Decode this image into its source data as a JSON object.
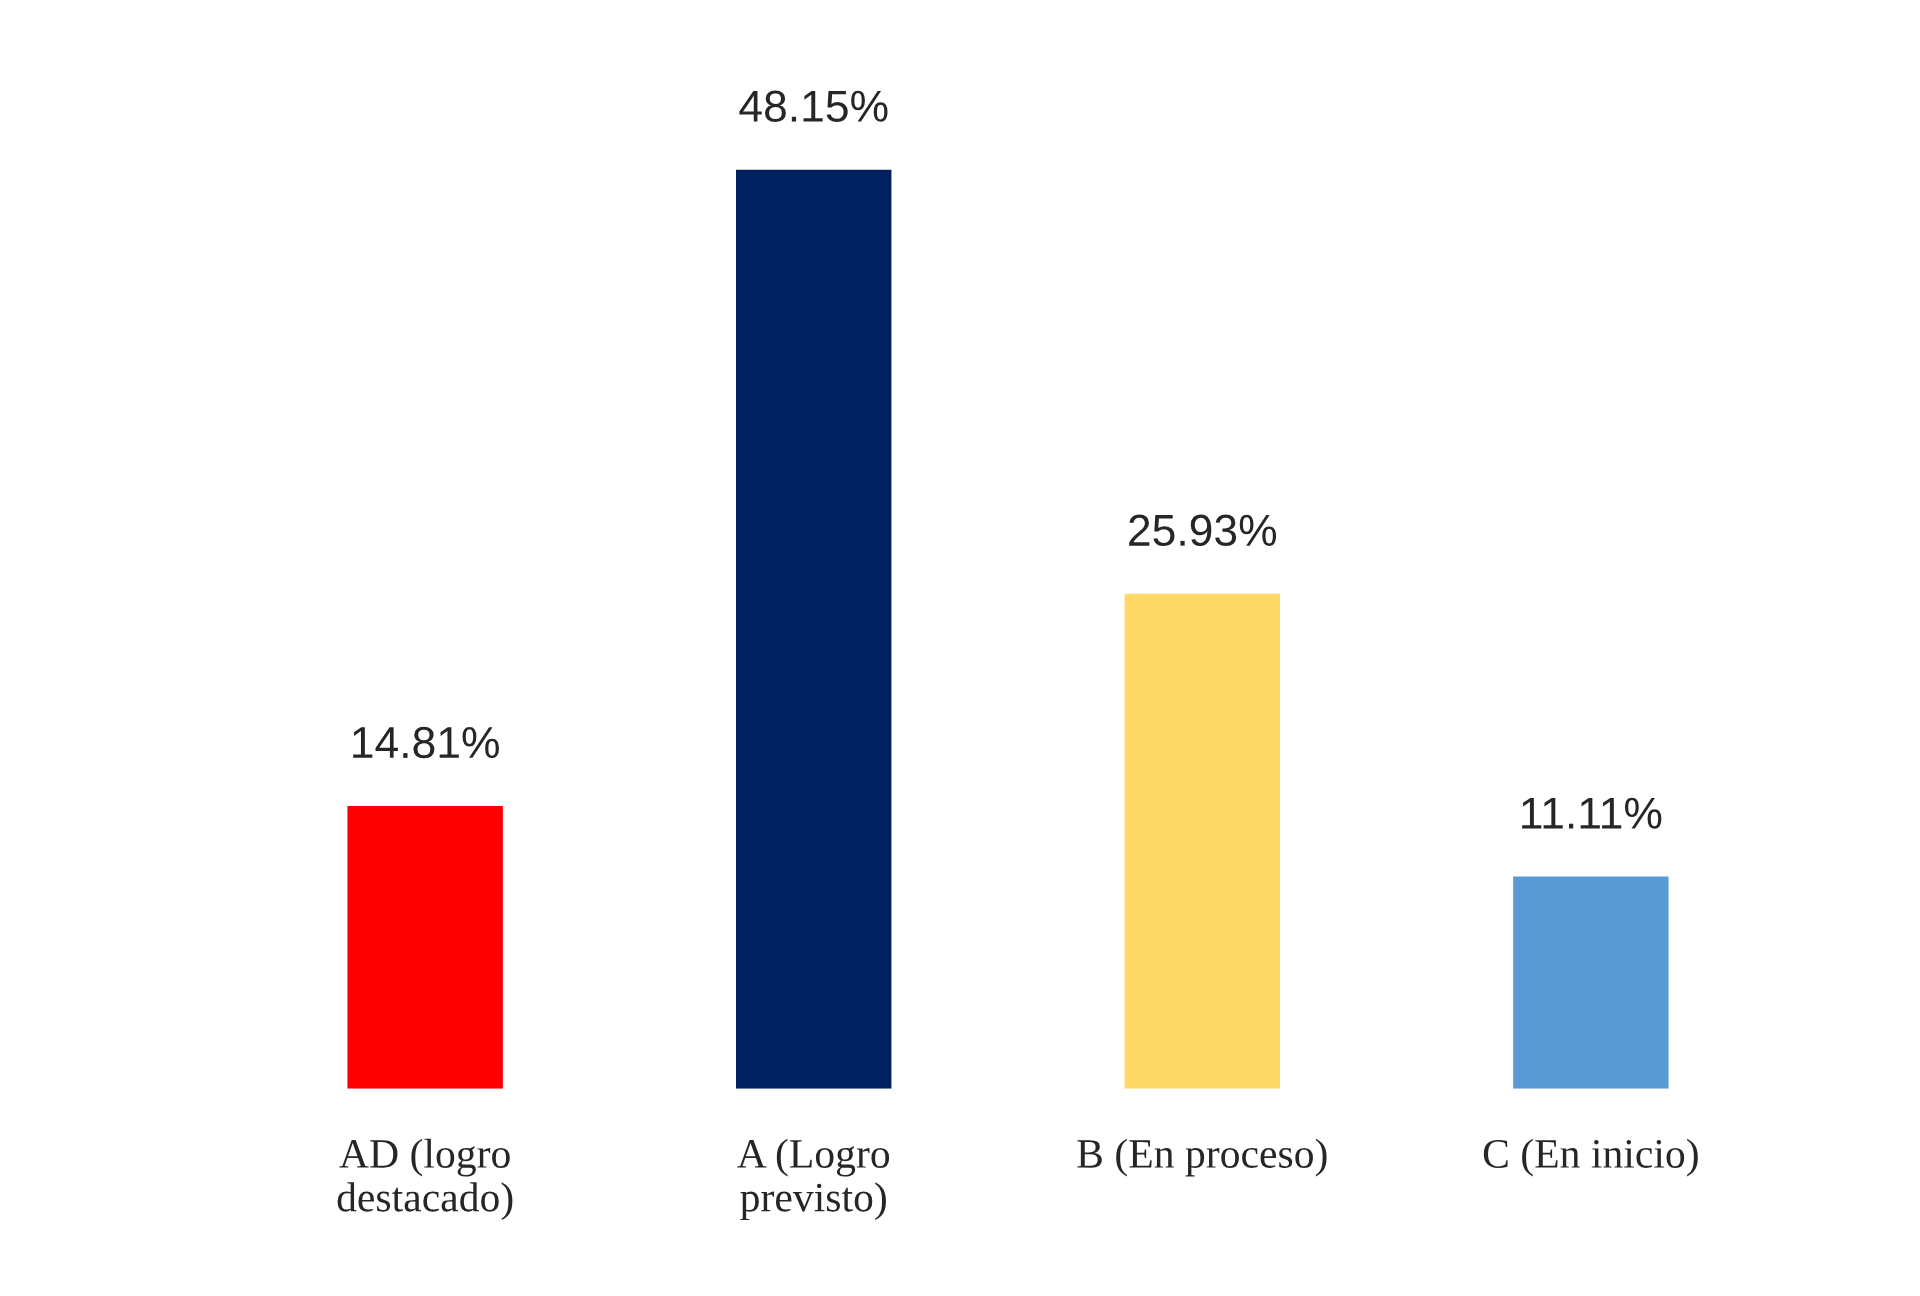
{
  "chart_data": {
    "type": "bar",
    "categories": [
      "AD (logro destacado)",
      "A (Logro previsto)",
      "B (En proceso)",
      "C (En inicio)"
    ],
    "values": [
      14.81,
      48.15,
      25.93,
      11.11
    ],
    "colors": [
      "#ff0000",
      "#002060",
      "#ffd966",
      "#5b9bd5"
    ],
    "value_labels": [
      "14.81%",
      "48.15%",
      "25.93%",
      "11.11%"
    ],
    "grid": false,
    "legend": false
  }
}
